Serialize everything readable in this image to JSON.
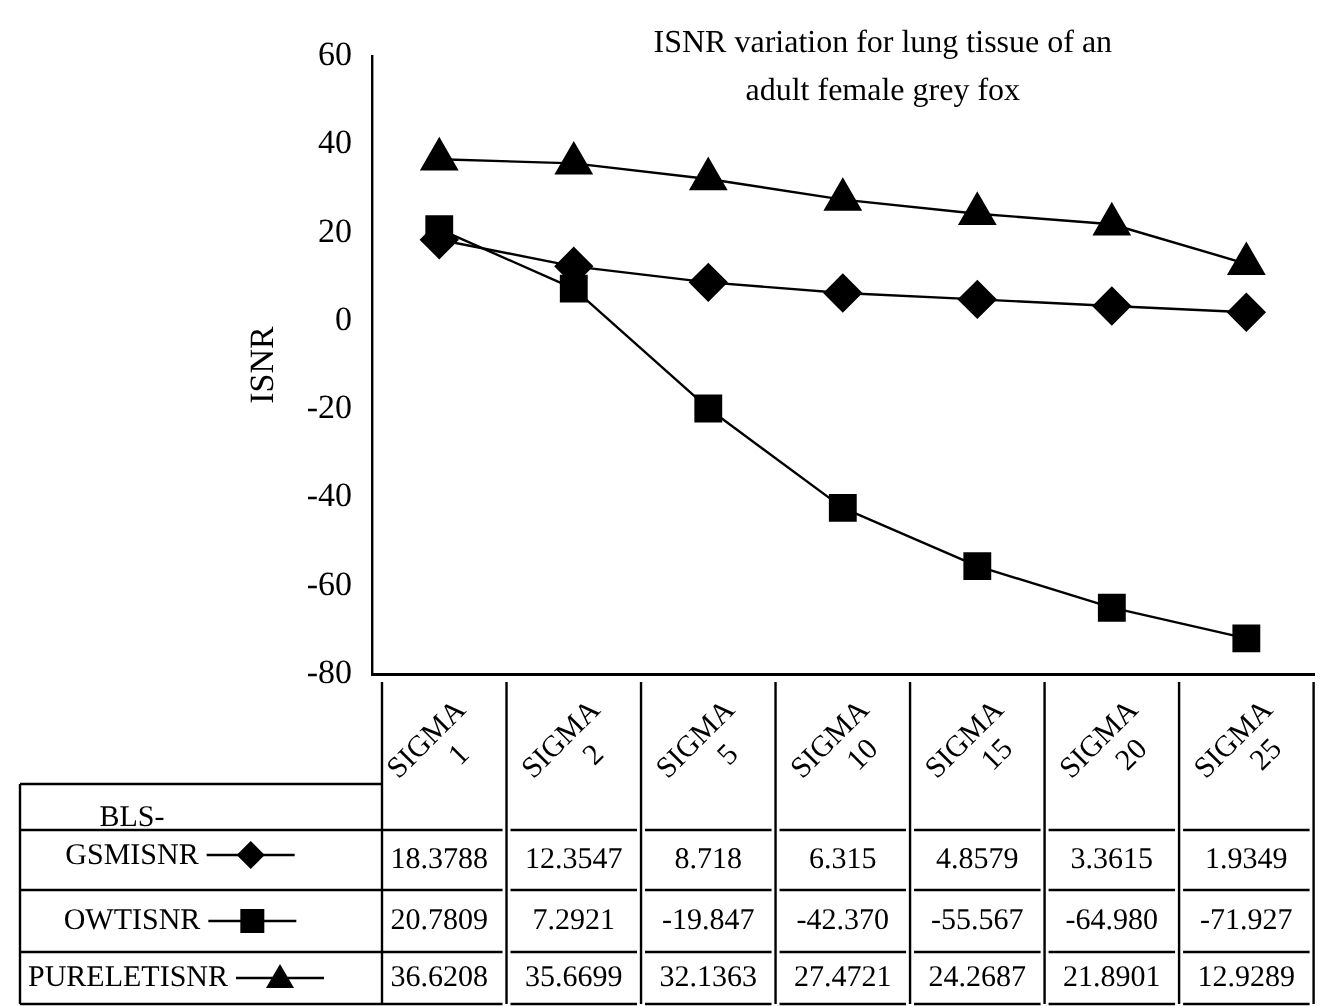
{
  "chart_data": {
    "type": "line",
    "title": "ISNR variation for lung tissue of an adult female grey fox",
    "ylabel": "ISNR",
    "categories": [
      "SIGMA 1",
      "SIGMA 2",
      "SIGMA 5",
      "SIGMA 10",
      "SIGMA 15",
      "SIGMA 20",
      "SIGMA 25"
    ],
    "ylim": [
      -80,
      60
    ],
    "yticks": [
      -80,
      -60,
      -40,
      -20,
      0,
      20,
      40,
      60
    ],
    "grid": false,
    "legend": "bottom left",
    "series": [
      {
        "name": "BLS-GSMISNR",
        "color": "#000000",
        "marker": "diamond",
        "values": [
          18.3788,
          12.3547,
          8.718,
          6.315,
          4.8579,
          3.3615,
          1.9349
        ],
        "value_labels": [
          "18.3788",
          "12.3547",
          "8.718",
          "6.315",
          "4.8579",
          "3.3615",
          "1.9349"
        ]
      },
      {
        "name": "OWTISNR",
        "color": "#000000",
        "marker": "square",
        "values": [
          20.7809,
          7.2921,
          -19.847,
          -42.37,
          -55.567,
          -64.98,
          -71.927
        ],
        "value_labels": [
          "20.7809",
          "7.2921",
          "-19.847",
          "-42.370",
          "-55.567",
          "-64.980",
          "-71.927"
        ]
      },
      {
        "name": "PURELETISNR",
        "color": "#000000",
        "marker": "triangle",
        "values": [
          36.6208,
          35.6699,
          32.1363,
          27.4721,
          24.2687,
          21.8901,
          12.9289
        ],
        "value_labels": [
          "36.6208",
          "35.6699",
          "32.1363",
          "27.4721",
          "24.2687",
          "21.8901",
          "12.9289"
        ]
      }
    ]
  }
}
